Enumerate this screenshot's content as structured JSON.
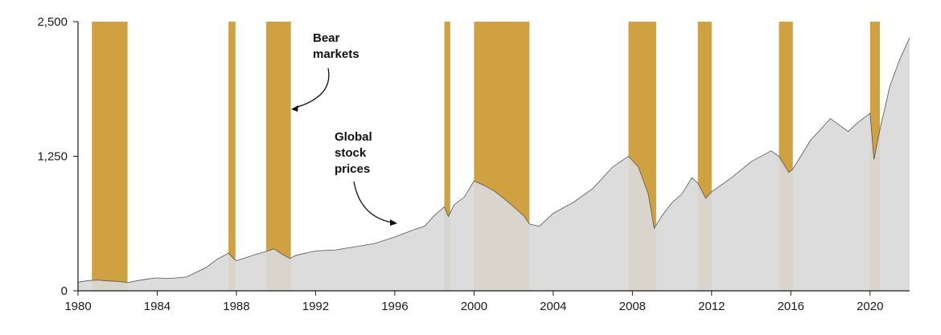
{
  "chart_data": {
    "type": "area",
    "title": "",
    "xlabel": "",
    "ylabel": "",
    "xlim": [
      1980,
      2022
    ],
    "ylim": [
      0,
      2500
    ],
    "grid": false,
    "legend": "none",
    "x_ticks": [
      "1980",
      "1984",
      "1988",
      "1992",
      "1996",
      "2000",
      "2004",
      "2008",
      "2012",
      "2016",
      "2020"
    ],
    "y_ticks": [
      "0",
      "1,250",
      "2,500"
    ],
    "series": [
      {
        "x": [
          1980.0,
          1980.5,
          1981.0,
          1981.5,
          1982.0,
          1982.5,
          1983.0,
          1983.5,
          1984.0,
          1984.5,
          1985.0,
          1985.5,
          1986.0,
          1986.5,
          1987.0,
          1987.6,
          1987.85,
          1988.0,
          1988.5,
          1989.0,
          1989.5,
          1989.9,
          1990.3,
          1990.7,
          1991.0,
          1992.0,
          1993.0,
          1994.0,
          1995.0,
          1996.0,
          1997.0,
          1997.5,
          1998.0,
          1998.5,
          1998.7,
          1999.0,
          1999.5,
          2000.0,
          2000.5,
          2001.0,
          2001.5,
          2002.0,
          2002.5,
          2002.8,
          2003.3,
          2004.0,
          2005.0,
          2006.0,
          2007.0,
          2007.8,
          2008.3,
          2008.8,
          2009.1,
          2009.5,
          2010.0,
          2010.5,
          2011.0,
          2011.3,
          2011.7,
          2012.0,
          2013.0,
          2014.0,
          2015.0,
          2015.4,
          2015.9,
          2016.1,
          2017.0,
          2018.0,
          2018.9,
          2019.3,
          2020.0,
          2020.2,
          2020.5,
          2021.0,
          2021.5,
          2022.0
        ],
        "values": [
          80,
          95,
          100,
          92,
          88,
          75,
          95,
          110,
          120,
          115,
          120,
          130,
          175,
          220,
          290,
          350,
          300,
          280,
          310,
          340,
          365,
          390,
          340,
          300,
          330,
          370,
          380,
          410,
          440,
          500,
          570,
          600,
          700,
          780,
          690,
          800,
          870,
          1020,
          980,
          930,
          860,
          780,
          700,
          620,
          600,
          720,
          820,
          950,
          1150,
          1250,
          1150,
          900,
          580,
          700,
          820,
          900,
          1050,
          1000,
          860,
          920,
          1050,
          1200,
          1300,
          1250,
          1100,
          1130,
          1400,
          1600,
          1480,
          1550,
          1650,
          1220,
          1500,
          1900,
          2150,
          2350
        ]
      }
    ],
    "bear_markets": [
      [
        1980.7,
        1982.5
      ],
      [
        1987.6,
        1987.95
      ],
      [
        1989.5,
        1990.75
      ],
      [
        1998.5,
        1998.8
      ],
      [
        2000.0,
        2002.8
      ],
      [
        2007.8,
        2009.2
      ],
      [
        2011.3,
        2012.0
      ],
      [
        2015.4,
        2016.1
      ],
      [
        2020.0,
        2020.5
      ]
    ],
    "annotations": [
      {
        "text": "Bear markets",
        "lines": [
          "Bear",
          "markets"
        ]
      },
      {
        "text": "Global stock prices",
        "lines": [
          "Global",
          "stock",
          "prices"
        ]
      }
    ],
    "colors": {
      "area": "#d9d9d9",
      "line": "#555555",
      "bear": "#d0a141",
      "axis": "#1a1a1a"
    }
  }
}
